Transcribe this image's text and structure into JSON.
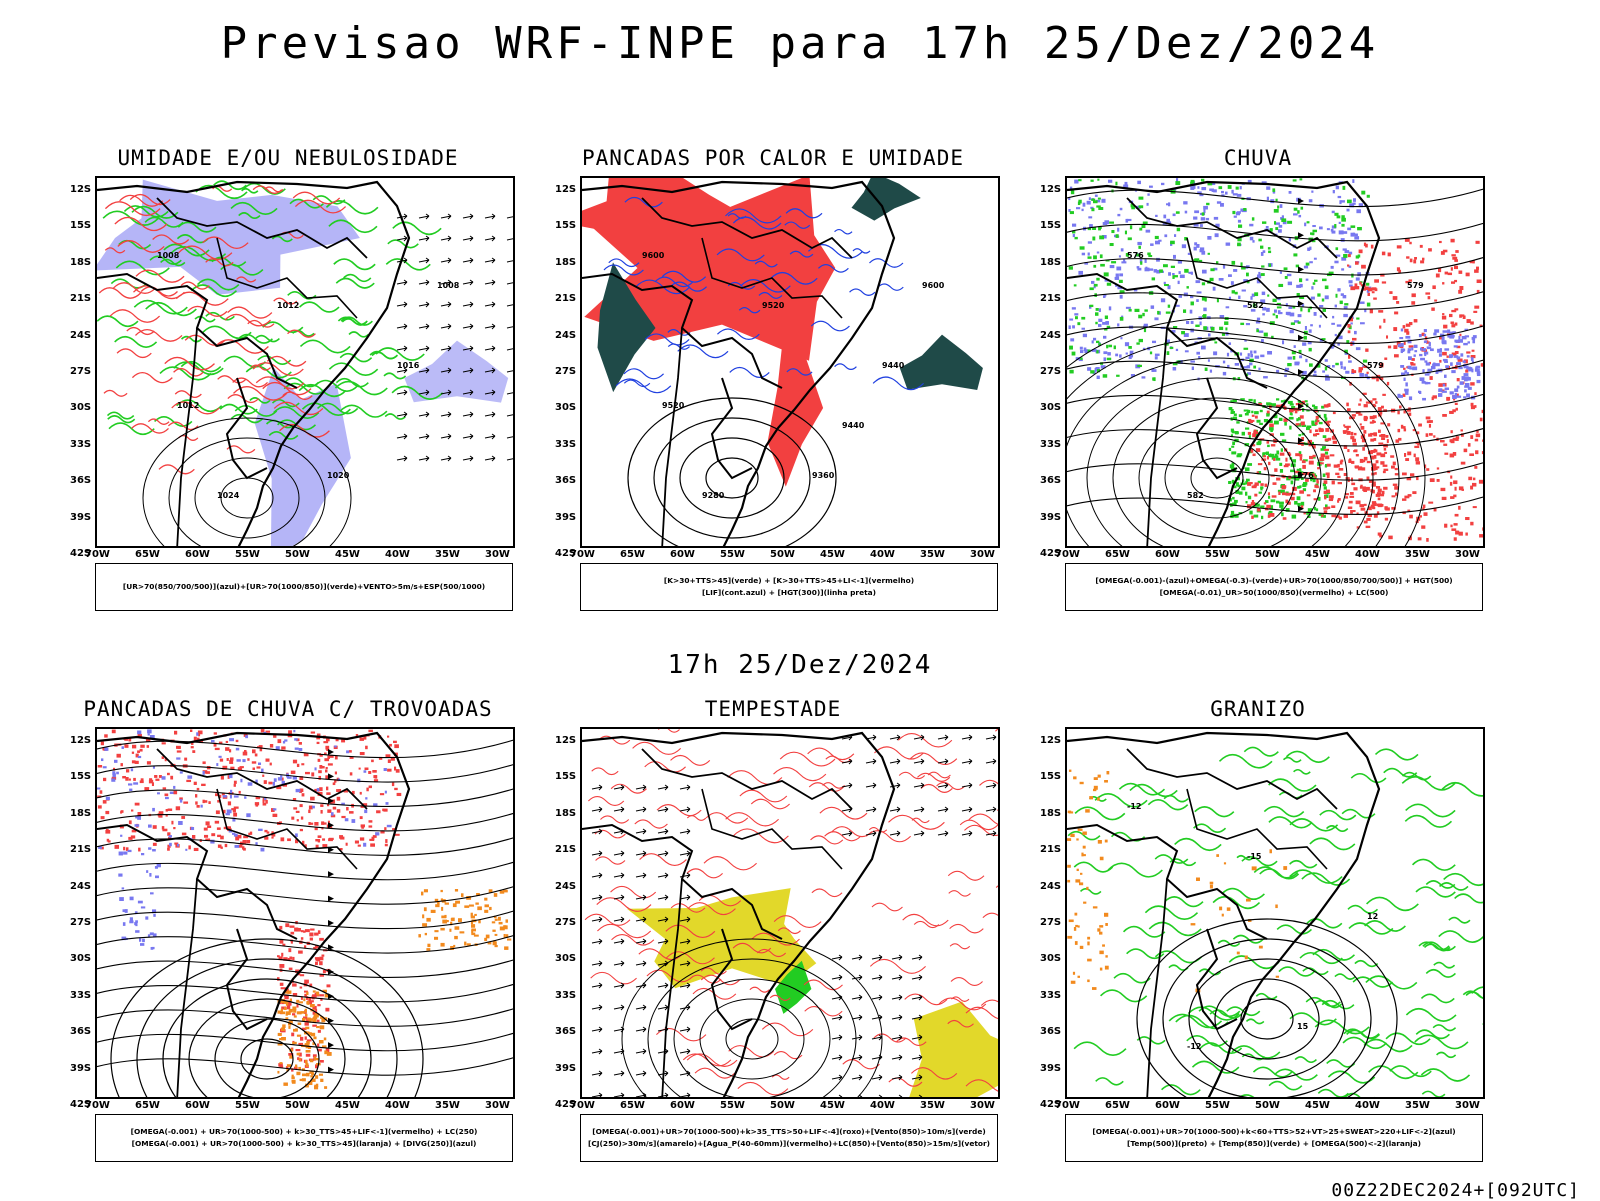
{
  "title": "Previsao WRF-INPE  para 17h 25/Dez/2024",
  "mid_title": "17h 25/Dez/2024",
  "footer": "00Z22DEC2024+[092UTC]",
  "lat_labels": [
    "12S",
    "15S",
    "18S",
    "21S",
    "24S",
    "27S",
    "30S",
    "33S",
    "36S",
    "39S",
    "42S"
  ],
  "lon_labels": [
    "70W",
    "65W",
    "60W",
    "55W",
    "50W",
    "45W",
    "40W",
    "35W",
    "30W"
  ],
  "colors": {
    "blue": "#7878f0",
    "green": "#22cc22",
    "red": "#f24040",
    "darkteal": "#1f4a48",
    "orange": "#f28a1e",
    "yellow": "#e2d82a",
    "purple": "#c020c0",
    "navy": "#2040e0"
  },
  "panels": [
    {
      "title": "UMIDADE E/OU NEBULOSIDADE",
      "legend": [
        "[UR>70(850/700/500)](azul)+[UR>70(1000/850)](verde)+VENTO>5m/s+ESP(500/1000)"
      ]
    },
    {
      "title": "PANCADAS POR CALOR E UMIDADE",
      "legend": [
        "[K>30+TTS>45](verde) + [K>30+TTS>45+LI<-1](vermelho)",
        "[LIF](cont.azul) + [HGT(300)](linha preta)"
      ]
    },
    {
      "title": "CHUVA",
      "legend": [
        "[OMEGA(-0.001)-(azul)+OMEGA(-0.3)-(verde)+UR>70(1000/850/700/500)] + HGT(500)",
        "[OMEGA(-0.01)_UR>50(1000/850)(vermelho) + LC(500)"
      ]
    },
    {
      "title": "PANCADAS DE CHUVA C/ TROVOADAS",
      "legend": [
        "[OMEGA(-0.001) + UR>70(1000-500) + k>30_TTS>45+LIF<-1](vermelho) + LC(250)",
        "[OMEGA(-0.001) + UR>70(1000-500) + k>30_TTS>45](laranja) + [DIVG(250)](azul)"
      ]
    },
    {
      "title": "TEMPESTADE",
      "legend": [
        "[OMEGA(-0.001)+UR>70(1000-500)+k>35_TTS>50+LIF<-4](roxo)+[Vento(850)>10m/s](verde)",
        "[CJ(250)>30m/s](amarelo)+[Agua_P(40-60mm)](vermelho)+LC(850)+[Vento(850)>15m/s](vetor)"
      ]
    },
    {
      "title": "GRANIZO",
      "legend": [
        "[OMEGA(-0.001)+UR>70(1000-500)+k<60+TTS>52+VT>25+SWEAT>220+LIF<-2](azul)",
        "[Temp(500)](preto) + [Temp(850)](verde) + [OMEGA(500)<-2](laranja)"
      ]
    }
  ],
  "contour_labels": {
    "p1": [
      "1008",
      "1012",
      "1016",
      "1020",
      "1024",
      "1008",
      "1012"
    ],
    "p2": [
      "9600",
      "9520",
      "9440",
      "9360",
      "9280",
      "9600",
      "9520",
      "9440"
    ],
    "p3": [
      "576",
      "582",
      "579",
      "576",
      "582",
      "579"
    ],
    "p6": [
      "-12",
      "-15",
      "12",
      "15",
      "-12"
    ]
  }
}
